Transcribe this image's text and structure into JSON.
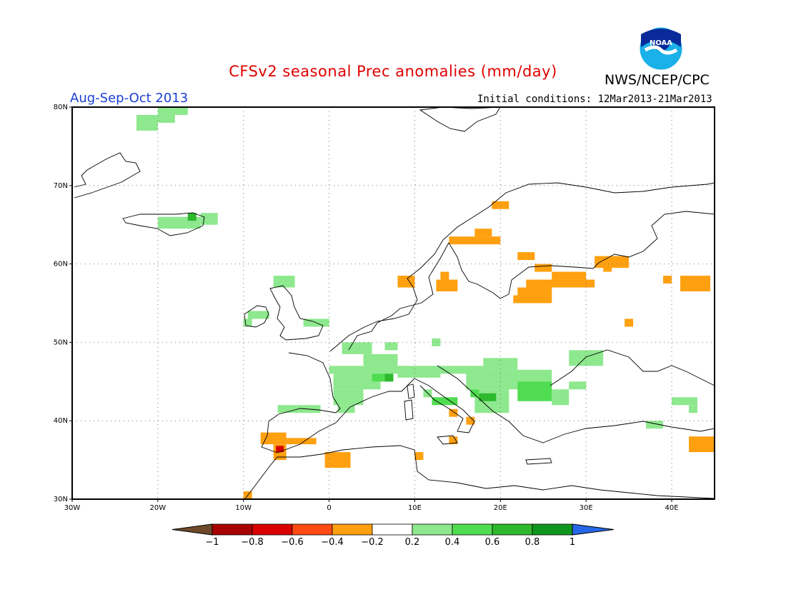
{
  "title": "CFSv2 seasonal Prec anomalies (mm/day)",
  "agency": "NWS/NCEP/CPC",
  "logo_text": "NOAA",
  "season": "Aug-Sep-Oct 2013",
  "initial_conditions": "Initial conditions: 12Mar2013-21Mar2013",
  "map": {
    "lon_range": [
      -30,
      45
    ],
    "lat_range": [
      30,
      80
    ],
    "lat_ticks": [
      {
        "v": 80,
        "label": "80N"
      },
      {
        "v": 70,
        "label": "70N"
      },
      {
        "v": 60,
        "label": "60N"
      },
      {
        "v": 50,
        "label": "50N"
      },
      {
        "v": 40,
        "label": "40N"
      },
      {
        "v": 30,
        "label": "30N"
      }
    ],
    "lon_ticks": [
      {
        "v": -30,
        "label": "30W"
      },
      {
        "v": -20,
        "label": "20W"
      },
      {
        "v": -10,
        "label": "10W"
      },
      {
        "v": 0,
        "label": "0"
      },
      {
        "v": 10,
        "label": "10E"
      },
      {
        "v": 20,
        "label": "20E"
      },
      {
        "v": 30,
        "label": "30E"
      },
      {
        "v": 40,
        "label": "40E"
      }
    ],
    "grid": true
  },
  "colorbar": {
    "labels": [
      "-1",
      "-0.8",
      "-0.6",
      "-0.4",
      "-0.2",
      "0.2",
      "0.4",
      "0.6",
      "0.8",
      "1"
    ],
    "colors": [
      "#6e4a2a",
      "#a80000",
      "#d80000",
      "#ff4a14",
      "#ffa010",
      "#ffffff",
      "#8ee88e",
      "#50dc50",
      "#2eb82e",
      "#10961e",
      "#2868e8"
    ]
  },
  "anomalies": [
    {
      "lon": [
        -22.5,
        -20
      ],
      "lat": [
        77,
        79
      ],
      "level": 0.3
    },
    {
      "lon": [
        -20,
        -18
      ],
      "lat": [
        78,
        80
      ],
      "level": 0.3
    },
    {
      "lon": [
        -18,
        -16.5
      ],
      "lat": [
        79,
        80
      ],
      "level": 0.3
    },
    {
      "lon": [
        -20,
        -15
      ],
      "lat": [
        64.5,
        66
      ],
      "level": 0.3
    },
    {
      "lon": [
        -16.5,
        -15.5
      ],
      "lat": [
        65.5,
        66.5
      ],
      "level": 0.7
    },
    {
      "lon": [
        -15,
        -13
      ],
      "lat": [
        65,
        66.5
      ],
      "level": 0.3
    },
    {
      "lon": [
        -6.5,
        -4
      ],
      "lat": [
        57,
        58.5
      ],
      "level": 0.3
    },
    {
      "lon": [
        -9.5,
        -7
      ],
      "lat": [
        53,
        54
      ],
      "level": 0.3
    },
    {
      "lon": [
        -10,
        -9
      ],
      "lat": [
        52,
        53
      ],
      "level": 0.3
    },
    {
      "lon": [
        -3,
        0
      ],
      "lat": [
        52,
        53
      ],
      "level": 0.3
    },
    {
      "lon": [
        1.5,
        5
      ],
      "lat": [
        48.5,
        50
      ],
      "level": 0.3
    },
    {
      "lon": [
        4,
        8
      ],
      "lat": [
        47,
        48.5
      ],
      "level": 0.3
    },
    {
      "lon": [
        0,
        9
      ],
      "lat": [
        46,
        47
      ],
      "level": 0.3
    },
    {
      "lon": [
        0.5,
        6
      ],
      "lat": [
        44,
        46
      ],
      "level": 0.3
    },
    {
      "lon": [
        0.5,
        4
      ],
      "lat": [
        42,
        44
      ],
      "level": 0.3
    },
    {
      "lon": [
        1,
        3
      ],
      "lat": [
        41,
        42
      ],
      "level": 0.3
    },
    {
      "lon": [
        5,
        7
      ],
      "lat": [
        45,
        46
      ],
      "level": 0.5
    },
    {
      "lon": [
        6.5,
        7.5
      ],
      "lat": [
        45,
        46
      ],
      "level": 0.7
    },
    {
      "lon": [
        6.5,
        8
      ],
      "lat": [
        49,
        50
      ],
      "level": 0.3
    },
    {
      "lon": [
        8,
        13
      ],
      "lat": [
        45.5,
        47
      ],
      "level": 0.3
    },
    {
      "lon": [
        13,
        18
      ],
      "lat": [
        46,
        47
      ],
      "level": 0.3
    },
    {
      "lon": [
        12,
        13
      ],
      "lat": [
        49.5,
        50.5
      ],
      "level": 0.3
    },
    {
      "lon": [
        16,
        26
      ],
      "lat": [
        44,
        46.5
      ],
      "level": 0.3
    },
    {
      "lon": [
        18,
        22
      ],
      "lat": [
        46.5,
        48
      ],
      "level": 0.3
    },
    {
      "lon": [
        17,
        21
      ],
      "lat": [
        41,
        44
      ],
      "level": 0.3
    },
    {
      "lon": [
        17.5,
        19.5
      ],
      "lat": [
        42.5,
        43.5
      ],
      "level": 0.7
    },
    {
      "lon": [
        16.5,
        17.5
      ],
      "lat": [
        43,
        44
      ],
      "level": 0.5
    },
    {
      "lon": [
        22,
        26
      ],
      "lat": [
        42.5,
        45
      ],
      "level": 0.5
    },
    {
      "lon": [
        26,
        28
      ],
      "lat": [
        42,
        44
      ],
      "level": 0.3
    },
    {
      "lon": [
        28,
        30
      ],
      "lat": [
        44,
        45
      ],
      "level": 0.3
    },
    {
      "lon": [
        12,
        15
      ],
      "lat": [
        42,
        43
      ],
      "level": 0.5
    },
    {
      "lon": [
        11,
        12
      ],
      "lat": [
        43,
        44
      ],
      "level": 0.3
    },
    {
      "lon": [
        28,
        32
      ],
      "lat": [
        47,
        49
      ],
      "level": 0.3
    },
    {
      "lon": [
        40,
        43
      ],
      "lat": [
        42,
        43
      ],
      "level": 0.3
    },
    {
      "lon": [
        42,
        43
      ],
      "lat": [
        41,
        42
      ],
      "level": 0.3
    },
    {
      "lon": [
        -6,
        -1
      ],
      "lat": [
        41,
        42
      ],
      "level": 0.3
    },
    {
      "lon": [
        37,
        39
      ],
      "lat": [
        39,
        40
      ],
      "level": 0.3
    },
    {
      "lon": [
        22,
        26
      ],
      "lat": [
        55,
        57
      ],
      "level": -0.3
    },
    {
      "lon": [
        23,
        31
      ],
      "lat": [
        57,
        58
      ],
      "level": -0.3
    },
    {
      "lon": [
        26,
        30
      ],
      "lat": [
        58,
        59
      ],
      "level": -0.3
    },
    {
      "lon": [
        24,
        26
      ],
      "lat": [
        59,
        60
      ],
      "level": -0.3
    },
    {
      "lon": [
        21.5,
        22.5
      ],
      "lat": [
        55,
        56
      ],
      "level": -0.3
    },
    {
      "lon": [
        31,
        35
      ],
      "lat": [
        59.5,
        61
      ],
      "level": -0.3
    },
    {
      "lon": [
        32,
        33
      ],
      "lat": [
        59,
        60
      ],
      "level": -0.3
    },
    {
      "lon": [
        22,
        24
      ],
      "lat": [
        60.5,
        61.5
      ],
      "level": -0.3
    },
    {
      "lon": [
        14,
        20
      ],
      "lat": [
        62.5,
        63.5
      ],
      "level": -0.3
    },
    {
      "lon": [
        17,
        19
      ],
      "lat": [
        63.5,
        64.5
      ],
      "level": -0.3
    },
    {
      "lon": [
        19,
        21
      ],
      "lat": [
        67,
        68
      ],
      "level": -0.3
    },
    {
      "lon": [
        8,
        10
      ],
      "lat": [
        57,
        58.5
      ],
      "level": -0.3
    },
    {
      "lon": [
        12.5,
        15
      ],
      "lat": [
        56.5,
        58
      ],
      "level": -0.3
    },
    {
      "lon": [
        13,
        14
      ],
      "lat": [
        58,
        59
      ],
      "level": -0.3
    },
    {
      "lon": [
        39,
        40
      ],
      "lat": [
        57.5,
        58.5
      ],
      "level": -0.3
    },
    {
      "lon": [
        41,
        44.5
      ],
      "lat": [
        56.5,
        58.5
      ],
      "level": -0.3
    },
    {
      "lon": [
        34.5,
        35.5
      ],
      "lat": [
        52,
        53
      ],
      "level": -0.3
    },
    {
      "lon": [
        -8,
        -5
      ],
      "lat": [
        37,
        38.5
      ],
      "level": -0.3
    },
    {
      "lon": [
        -5,
        -1.5
      ],
      "lat": [
        37,
        37.8
      ],
      "level": -0.3
    },
    {
      "lon": [
        -6.5,
        -5
      ],
      "lat": [
        35,
        37
      ],
      "level": -0.3
    },
    {
      "lon": [
        -6.2,
        -5.3
      ],
      "lat": [
        36,
        36.8
      ],
      "level": -0.7
    },
    {
      "lon": [
        -0.5,
        2.5
      ],
      "lat": [
        34,
        36
      ],
      "level": -0.3
    },
    {
      "lon": [
        -10,
        -9
      ],
      "lat": [
        30,
        31
      ],
      "level": -0.3
    },
    {
      "lon": [
        10,
        11
      ],
      "lat": [
        35,
        36
      ],
      "level": -0.3
    },
    {
      "lon": [
        14,
        15
      ],
      "lat": [
        37,
        38
      ],
      "level": -0.3
    },
    {
      "lon": [
        14,
        15
      ],
      "lat": [
        40.5,
        41.5
      ],
      "level": -0.3
    },
    {
      "lon": [
        16,
        17
      ],
      "lat": [
        39.5,
        40.5
      ],
      "level": -0.3
    },
    {
      "lon": [
        42,
        45
      ],
      "lat": [
        36,
        38
      ],
      "level": -0.3
    }
  ]
}
